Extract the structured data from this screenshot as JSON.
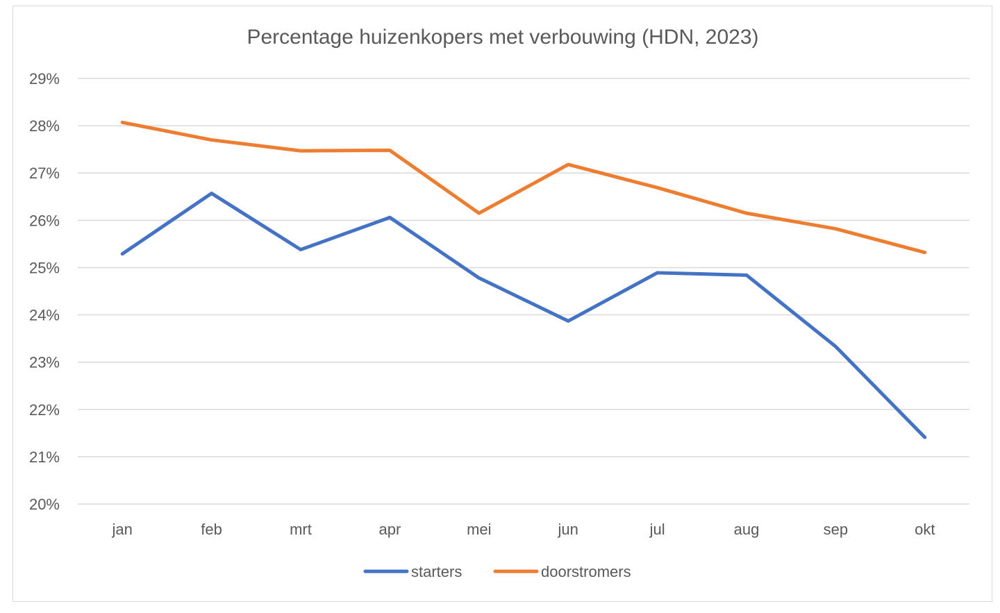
{
  "chart_data": {
    "type": "line",
    "title": "Percentage huizenkopers met verbouwing (HDN, 2023)",
    "xlabel": "",
    "ylabel": "",
    "categories": [
      "jan",
      "feb",
      "mrt",
      "apr",
      "mei",
      "jun",
      "jul",
      "aug",
      "sep",
      "okt"
    ],
    "ylim": [
      0.2,
      0.29
    ],
    "yticks": [
      "20%",
      "21%",
      "22%",
      "23%",
      "24%",
      "25%",
      "26%",
      "27%",
      "28%",
      "29%"
    ],
    "grid": true,
    "legend_position": "bottom",
    "series": [
      {
        "name": "starters",
        "color": "#4472C4",
        "values": [
          0.2529,
          0.2657,
          0.2538,
          0.2606,
          0.2478,
          0.2387,
          0.2489,
          0.2484,
          0.2333,
          0.2141
        ]
      },
      {
        "name": "doorstromers",
        "color": "#ED7D31",
        "values": [
          0.2807,
          0.277,
          0.2747,
          0.2748,
          0.2615,
          0.2718,
          0.2669,
          0.2615,
          0.2582,
          0.2532
        ]
      }
    ]
  }
}
